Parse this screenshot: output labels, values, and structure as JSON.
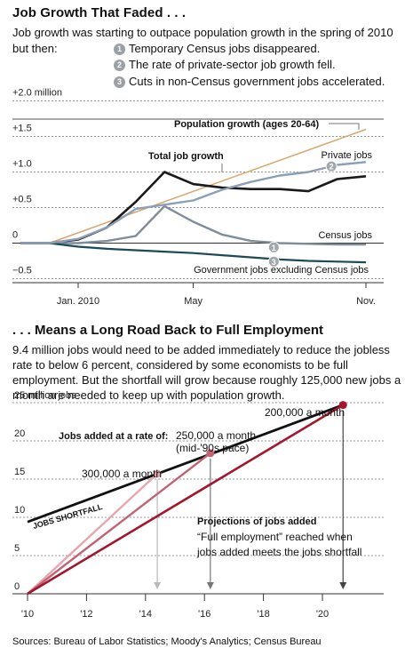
{
  "header1": {
    "title": "Job Growth That Faded . . ."
  },
  "intro": {
    "text": "Job growth was starting to outpace population growth in the spring of 2010 but then:",
    "notes": [
      {
        "num": "1",
        "text": "Temporary Census jobs disappeared."
      },
      {
        "num": "2",
        "text": "The rate of private-sector job growth fell."
      },
      {
        "num": "3",
        "text": "Cuts in non-Census government jobs accelerated."
      }
    ]
  },
  "header2": {
    "title": ". . . Means a Long Road Back to Full Employment"
  },
  "paragraph": "9.4 million jobs would need to be added immediately to reduce the jobless rate to below 6 percent, considered by some economists to be full employment. But the shortfall will grow because roughly 125,000 new jobs a month are needed to keep up with population growth.",
  "source": "Sources: Bureau of Labor Statistics; Moody's Analytics; Census Bureau",
  "chart_data": [
    {
      "type": "line",
      "ylim": [
        -0.6,
        2.0
      ],
      "y_ticks": [
        {
          "value": 2.0,
          "label": "+2.0 million"
        },
        {
          "value": 1.5,
          "label": "+1.5"
        },
        {
          "value": 1.0,
          "label": "+1.0"
        },
        {
          "value": 0.5,
          "label": "+0.5"
        },
        {
          "value": 0,
          "label": "0"
        },
        {
          "value": -0.5,
          "label": "−0.5"
        }
      ],
      "x_ticks": [
        {
          "value": 0,
          "label": "Jan. 2010"
        },
        {
          "value": 4,
          "label": "May"
        },
        {
          "value": 10,
          "label": "Nov."
        }
      ],
      "series": [
        {
          "name": "Population growth (ages 20-64)",
          "color": "#d9a56b",
          "width": 1.5,
          "x": [
            -1,
            10
          ],
          "values": [
            0,
            1.6
          ]
        },
        {
          "name": "Total job growth",
          "color": "#1a1a1a",
          "width": 2.6,
          "x": [
            -2,
            -1,
            0,
            1,
            2,
            3,
            4,
            5,
            6,
            7,
            8,
            9,
            10
          ],
          "values": [
            0,
            0,
            0.05,
            0.22,
            0.58,
            1.0,
            0.83,
            0.78,
            0.76,
            0.76,
            0.73,
            0.9,
            0.94
          ]
        },
        {
          "name": "Private jobs",
          "color": "#8aa0b8",
          "width": 2.4,
          "x": [
            -2,
            -1,
            0,
            1,
            2,
            3,
            4,
            5,
            6,
            7,
            8,
            9,
            10
          ],
          "values": [
            0,
            0,
            0.06,
            0.22,
            0.48,
            0.54,
            0.6,
            0.75,
            0.86,
            0.95,
            1.0,
            1.1,
            1.14
          ]
        },
        {
          "name": "Census jobs",
          "color": "#7f8c99",
          "width": 2.4,
          "x": [
            -2,
            -1,
            0,
            1,
            2,
            3,
            4,
            5,
            6,
            7,
            8,
            9,
            10
          ],
          "values": [
            0,
            0,
            0,
            0.03,
            0.1,
            0.52,
            0.3,
            0.12,
            0.03,
            0,
            -0.01,
            -0.02,
            -0.02
          ]
        },
        {
          "name": "Government jobs excluding Census jobs",
          "color": "#1d4a58",
          "width": 2.2,
          "x": [
            -2,
            -1,
            0,
            1,
            2,
            3,
            4,
            5,
            6,
            7,
            8,
            9,
            10
          ],
          "values": [
            0,
            0,
            -0.05,
            -0.08,
            -0.1,
            -0.12,
            -0.14,
            -0.17,
            -0.2,
            -0.23,
            -0.25,
            -0.26,
            -0.27
          ]
        }
      ],
      "labels": [
        {
          "text": "Population growth (ages 20-64)"
        },
        {
          "text": "Total job growth"
        },
        {
          "text": "Private jobs"
        },
        {
          "text": "Census jobs"
        },
        {
          "text": "Government jobs excluding Census jobs"
        }
      ],
      "markers": [
        {
          "num": "2",
          "x": 8.8,
          "y": 1.08
        },
        {
          "num": "1",
          "x": 6.8,
          "y": -0.06
        },
        {
          "num": "3",
          "x": 6.8,
          "y": -0.26
        }
      ]
    },
    {
      "type": "line",
      "ylim": [
        0,
        25
      ],
      "xlim": [
        2010,
        2021
      ],
      "y_ticks": [
        {
          "value": 25,
          "label": "25 million jobs"
        },
        {
          "value": 20,
          "label": "20"
        },
        {
          "value": 15,
          "label": "15"
        },
        {
          "value": 10,
          "label": "10"
        },
        {
          "value": 5,
          "label": "5"
        },
        {
          "value": 0,
          "label": "0"
        }
      ],
      "x_ticks": [
        {
          "value": 2010,
          "label": "'10"
        },
        {
          "value": 2012,
          "label": "'12"
        },
        {
          "value": 2014,
          "label": "'14"
        },
        {
          "value": 2016,
          "label": "'16"
        },
        {
          "value": 2018,
          "label": "'18"
        },
        {
          "value": 2020,
          "label": "'20"
        }
      ],
      "series": [
        {
          "name": "Jobs shortfall",
          "color": "#111111",
          "width": 2.8,
          "x": [
            2010,
            2020.7
          ],
          "values": [
            9.4,
            24.7
          ]
        },
        {
          "name": "300,000 a month",
          "color": "#e6a6ae",
          "width": 2.4,
          "x": [
            2010,
            2014.4
          ],
          "values": [
            0,
            15.7
          ]
        },
        {
          "name": "250,000 a month (mid-'90s pace)",
          "color": "#c26373",
          "width": 2.4,
          "x": [
            2010,
            2016.2
          ],
          "values": [
            0,
            18.4
          ]
        },
        {
          "name": "200,000 a month",
          "color": "#a3172d",
          "width": 2.6,
          "x": [
            2010,
            2020.7
          ],
          "values": [
            0,
            24.7
          ]
        }
      ],
      "labels": [
        {
          "text": "JOBS SHORTFALL"
        },
        {
          "text": "Jobs added at a rate of:"
        },
        {
          "text": "250,000 a month"
        },
        {
          "text": "(mid-'90s pace)"
        },
        {
          "text": "300,000 a month"
        },
        {
          "text": "200,000 a month"
        },
        {
          "text": "Projections of jobs added"
        },
        {
          "text": "“Full employment” reached when"
        },
        {
          "text": "jobs added meets the jobs shortfall"
        }
      ]
    }
  ]
}
